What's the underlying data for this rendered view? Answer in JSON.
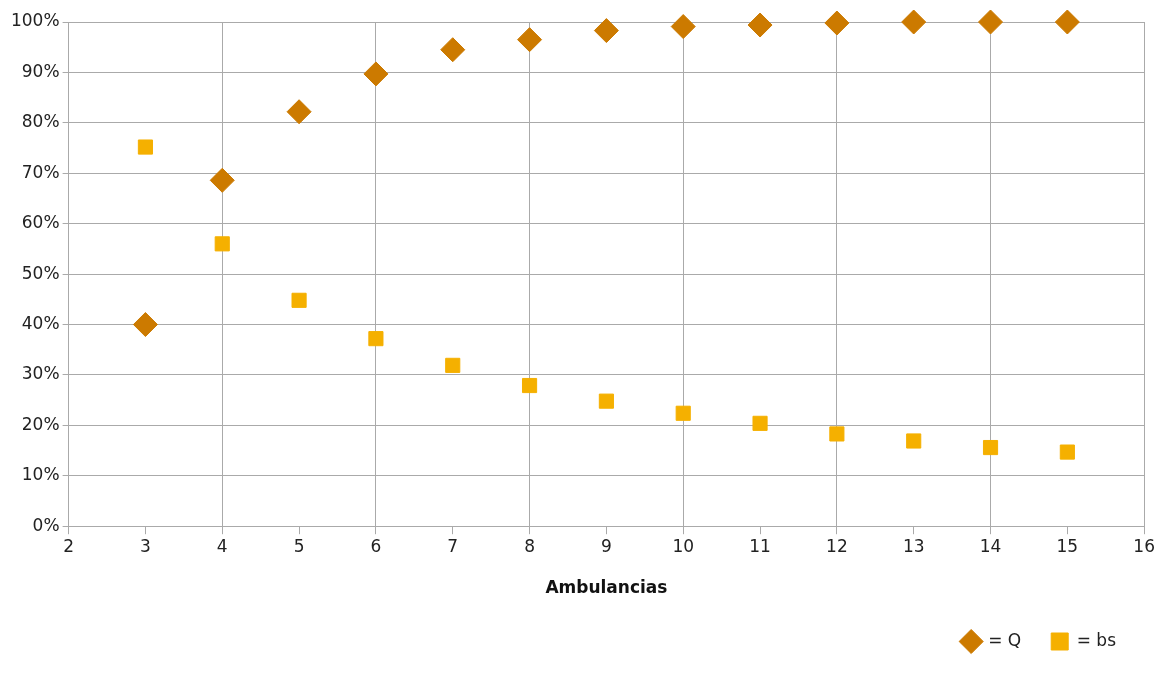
{
  "chart_data": {
    "type": "scatter",
    "xlabel": "Ambulancias",
    "x": [
      3,
      4,
      5,
      6,
      7,
      8,
      9,
      10,
      11,
      12,
      13,
      14,
      15
    ],
    "series": [
      {
        "name": "= Q",
        "color": "#cc7a00",
        "marker": "diamond",
        "values": [
          40,
          68.6,
          82.2,
          89.7,
          94.5,
          96.5,
          98.3,
          99.1,
          99.4,
          99.8,
          100,
          100,
          100
        ]
      },
      {
        "name": "= bs",
        "color": "#f5b000",
        "marker": "square",
        "values": [
          75.2,
          56,
          44.8,
          37.2,
          31.9,
          27.9,
          24.8,
          22.4,
          20.4,
          18.3,
          16.9,
          15.6,
          14.7
        ]
      }
    ],
    "xlim": [
      2,
      16
    ],
    "xticks": [
      2,
      3,
      4,
      5,
      6,
      7,
      8,
      9,
      10,
      11,
      12,
      13,
      14,
      15,
      16
    ],
    "ylim": [
      0,
      100
    ],
    "yticks": [
      {
        "value": 0,
        "label": "0%"
      },
      {
        "value": 10,
        "label": "10%"
      },
      {
        "value": 20,
        "label": "20%"
      },
      {
        "value": 30,
        "label": "30%"
      },
      {
        "value": 40,
        "label": "40%"
      },
      {
        "value": 50,
        "label": "50%"
      },
      {
        "value": 60,
        "label": "60%"
      },
      {
        "value": 70,
        "label": "70%"
      },
      {
        "value": 80,
        "label": "80%"
      },
      {
        "value": 90,
        "label": "90%"
      },
      {
        "value": 100,
        "label": "100%"
      }
    ],
    "grid": true,
    "legend": "bottom right"
  }
}
